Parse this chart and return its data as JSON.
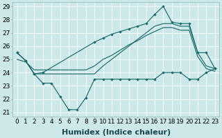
{
  "xlabel": "Humidex (Indice chaleur)",
  "bg_color": "#cce8e8",
  "grid_color": "#d9ecec",
  "line_color": "#1a6b6b",
  "ylim": [
    21,
    29
  ],
  "yticks": [
    21,
    22,
    23,
    24,
    25,
    26,
    27,
    28,
    29
  ],
  "xticks": [
    0,
    1,
    2,
    3,
    4,
    5,
    6,
    7,
    8,
    9,
    10,
    11,
    12,
    13,
    14,
    15,
    16,
    17,
    18,
    19,
    20,
    21,
    22,
    23
  ],
  "xlabel_fontsize": 8,
  "tick_fontsize": 6.5,
  "s1_x": [
    0,
    1,
    2,
    3,
    4,
    5,
    6,
    7,
    8,
    9,
    10,
    11,
    12,
    13,
    14,
    15,
    16,
    17,
    18,
    19,
    20,
    21,
    22,
    23
  ],
  "s1_y": [
    25.5,
    24.9,
    23.9,
    23.2,
    23.2,
    22.2,
    21.2,
    21.2,
    22.1,
    23.5,
    23.5,
    23.5,
    23.5,
    23.5,
    23.5,
    23.5,
    23.5,
    24.0,
    24.0,
    24.0,
    23.5,
    23.5,
    24.0,
    24.3
  ],
  "s2_x": [
    0,
    1,
    2,
    3,
    4,
    5,
    6,
    7,
    8,
    9,
    10,
    11,
    12,
    13,
    14,
    15,
    16,
    17,
    18,
    19,
    20,
    21,
    22,
    23
  ],
  "s2_y": [
    25.5,
    24.9,
    23.9,
    23.9,
    23.9,
    23.9,
    23.9,
    23.9,
    23.9,
    23.9,
    24.5,
    25.0,
    25.5,
    26.0,
    26.5,
    27.0,
    27.5,
    27.7,
    27.7,
    27.5,
    27.5,
    25.5,
    24.5,
    24.3
  ],
  "s3_x": [
    0,
    1,
    2,
    3,
    4,
    5,
    6,
    7,
    8,
    9,
    10,
    11,
    12,
    13,
    14,
    15,
    16,
    17,
    18,
    19,
    20,
    21,
    22,
    23
  ],
  "s3_y": [
    25.0,
    24.8,
    24.2,
    24.2,
    24.2,
    24.2,
    24.2,
    24.2,
    24.2,
    24.5,
    25.0,
    25.3,
    25.7,
    26.1,
    26.4,
    26.8,
    27.1,
    27.4,
    27.4,
    27.2,
    27.2,
    25.2,
    24.3,
    24.1
  ],
  "s4_x": [
    0,
    1,
    2,
    3,
    9,
    10,
    11,
    12,
    13,
    14,
    15,
    16,
    17,
    18,
    19,
    20,
    21,
    22,
    23
  ],
  "s4_y": [
    25.5,
    24.9,
    23.9,
    24.0,
    26.3,
    26.6,
    26.9,
    27.1,
    27.3,
    27.5,
    27.7,
    28.4,
    29.0,
    27.8,
    27.7,
    27.7,
    25.5,
    25.5,
    24.3
  ]
}
